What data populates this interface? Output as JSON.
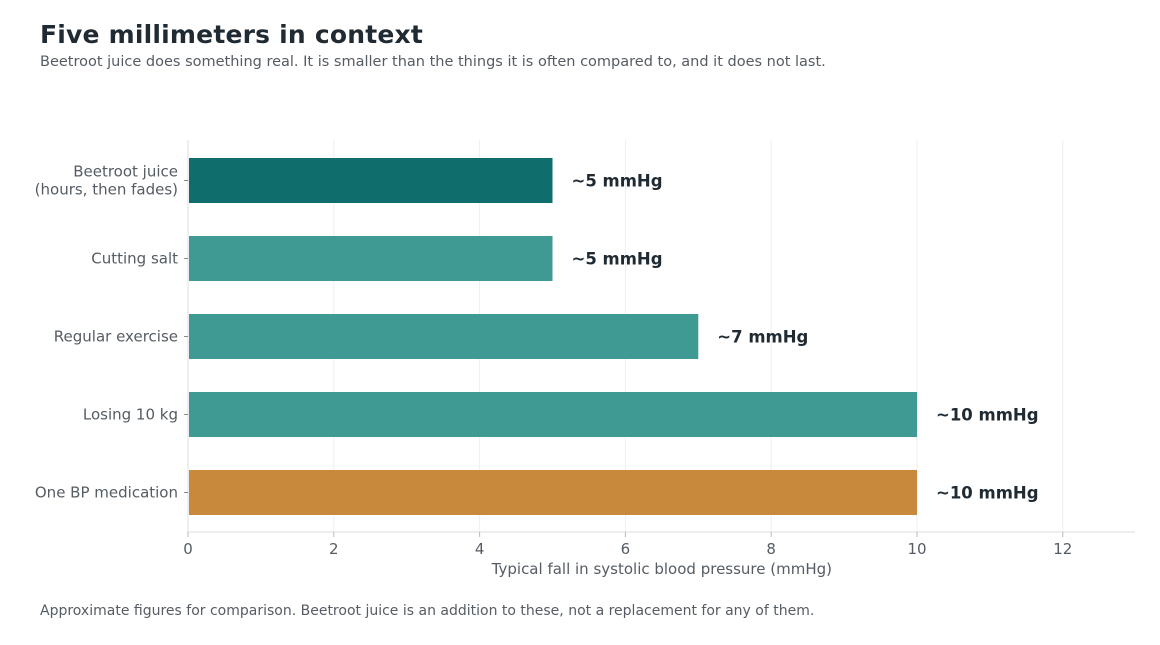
{
  "title": "Five millimeters in context",
  "subtitle": "Beetroot juice does something real. It is smaller than the things it is often compared to, and it does not last.",
  "footnote": "Approximate figures for comparison. Beetroot juice is an addition to these, not a replacement for any of them.",
  "colors": {
    "beetroot": "#0f6e6c",
    "lifestyle": "#3f9a94",
    "medication": "#c8893c",
    "text_dark": "#1f2a33",
    "text_muted": "#555c63",
    "grid": "#eeeeee"
  },
  "chart_data": {
    "type": "bar",
    "orientation": "horizontal",
    "categories": [
      [
        "Beetroot juice",
        "(hours, then fades)"
      ],
      [
        "Cutting salt"
      ],
      [
        "Regular exercise"
      ],
      [
        "Losing 10 kg"
      ],
      [
        "One BP medication"
      ]
    ],
    "values": [
      5,
      5,
      7,
      10,
      10
    ],
    "value_labels": [
      "~5 mmHg",
      "~5 mmHg",
      "~7 mmHg",
      "~10 mmHg",
      "~10 mmHg"
    ],
    "bar_colors": [
      "#0f6e6c",
      "#3f9a94",
      "#3f9a94",
      "#3f9a94",
      "#c8893c"
    ],
    "xlabel": "Typical fall in systolic blood pressure (mmHg)",
    "ylabel": "",
    "xlim": [
      0,
      13
    ],
    "xticks": [
      0,
      2,
      4,
      6,
      8,
      10,
      12
    ],
    "grid": "vertical",
    "legend": "none"
  }
}
